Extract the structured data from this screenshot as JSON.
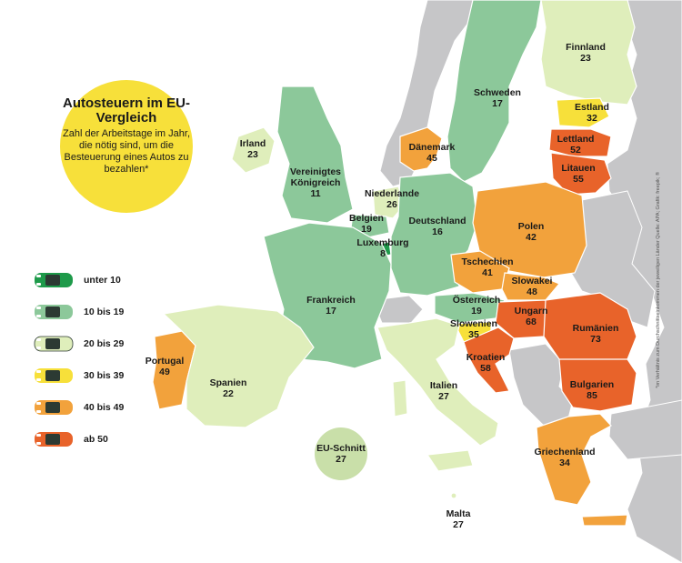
{
  "title": {
    "heading": "Autosteuern im EU-Vergleich",
    "subtitle": "Zahl der Arbeitstage im Jahr, die nötig sind, um die Besteuerung eines Autos zu bezahlen*"
  },
  "legend": [
    {
      "label": "unter 10",
      "color": "#1e9a4a"
    },
    {
      "label": "10 bis 19",
      "color": "#8cc89a"
    },
    {
      "label": "20 bis 29",
      "color": "#dfeebb"
    },
    {
      "label": "30 bis 39",
      "color": "#f7e03a"
    },
    {
      "label": "40 bis 49",
      "color": "#f2a23c"
    },
    {
      "label": "ab 50",
      "color": "#e8632a"
    }
  ],
  "countries": [
    {
      "name": "Finnland",
      "value": "23",
      "category": "20 bis 29"
    },
    {
      "name": "Schweden",
      "value": "17",
      "category": "10 bis 19"
    },
    {
      "name": "Estland",
      "value": "32",
      "category": "30 bis 39"
    },
    {
      "name": "Lettland",
      "value": "52",
      "category": "ab 50"
    },
    {
      "name": "Litauen",
      "value": "55",
      "category": "ab 50"
    },
    {
      "name": "Dänemark",
      "value": "45",
      "category": "40 bis 49"
    },
    {
      "name": "Irland",
      "value": "23",
      "category": "20 bis 29"
    },
    {
      "name": "Vereinigtes Königreich",
      "value": "11",
      "category": "10 bis 19"
    },
    {
      "name": "Niederlande",
      "value": "26",
      "category": "20 bis 29"
    },
    {
      "name": "Belgien",
      "value": "19",
      "category": "10 bis 19"
    },
    {
      "name": "Luxemburg",
      "value": "8",
      "category": "unter 10"
    },
    {
      "name": "Deutschland",
      "value": "16",
      "category": "10 bis 19"
    },
    {
      "name": "Polen",
      "value": "42",
      "category": "40 bis 49"
    },
    {
      "name": "Tschechien",
      "value": "41",
      "category": "40 bis 49"
    },
    {
      "name": "Slowakei",
      "value": "48",
      "category": "40 bis 49"
    },
    {
      "name": "Frankreich",
      "value": "17",
      "category": "10 bis 19"
    },
    {
      "name": "Österreich",
      "value": "19",
      "category": "10 bis 19"
    },
    {
      "name": "Ungarn",
      "value": "68",
      "category": "ab 50"
    },
    {
      "name": "Rumänien",
      "value": "73",
      "category": "ab 50"
    },
    {
      "name": "Slowenien",
      "value": "35",
      "category": "30 bis 39"
    },
    {
      "name": "Kroatien",
      "value": "58",
      "category": "ab 50"
    },
    {
      "name": "Portugal",
      "value": "49",
      "category": "40 bis 49"
    },
    {
      "name": "Spanien",
      "value": "22",
      "category": "20 bis 29"
    },
    {
      "name": "Italien",
      "value": "27",
      "category": "20 bis 29"
    },
    {
      "name": "Bulgarien",
      "value": "85",
      "category": "ab 50"
    },
    {
      "name": "Griechenland",
      "value": "34",
      "category": "30 bis 39"
    },
    {
      "name": "Malta",
      "value": "27",
      "category": "20 bis 29"
    }
  ],
  "eu_average": {
    "label": "EU-Schnitt",
    "value": "27"
  },
  "source_note": "*im Verhältnis zum Durchschnittseinkommen der jeweiligen Länder   Quelle: APA; Grafik: freepik; ®",
  "colors": {
    "non_eu": "#c6c6c8",
    "border": "#ffffff",
    "background": "#ffffff"
  }
}
